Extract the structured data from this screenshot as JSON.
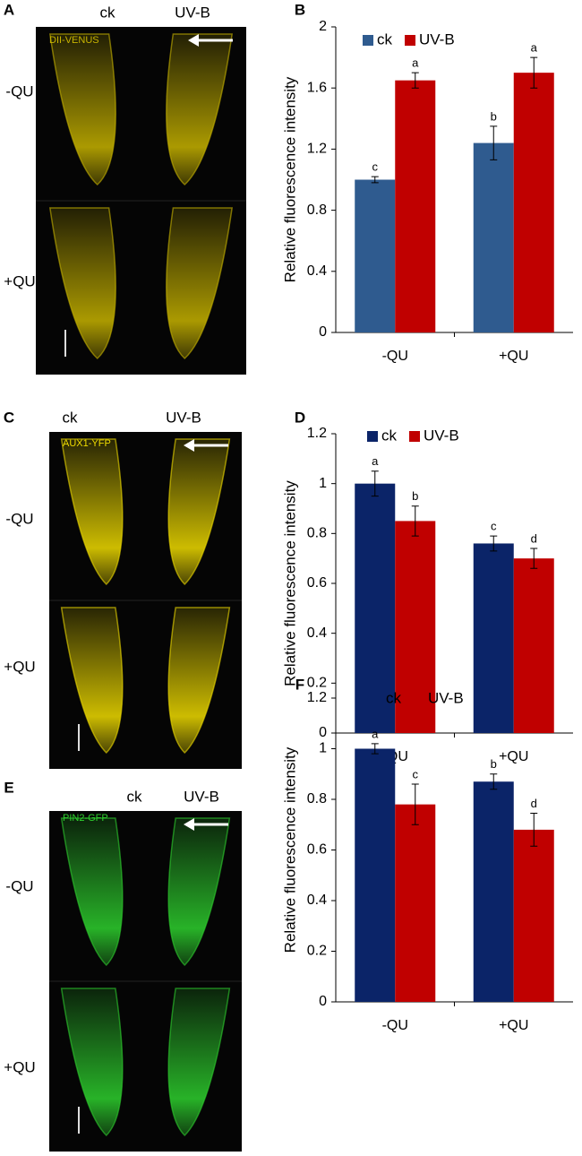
{
  "images": [
    {
      "panel": "A",
      "marker": "DII-VENUS",
      "columns": [
        "ck",
        "UV-B"
      ],
      "rows": [
        "-QU",
        "+QU"
      ],
      "color": "#c8b400"
    },
    {
      "panel": "C",
      "marker": "AUX1-YFP",
      "columns": [
        "ck",
        "UV-B"
      ],
      "rows": [
        "-QU",
        "+QU"
      ],
      "color": "#f0dc00"
    },
    {
      "panel": "E",
      "marker": "PIN2-GFP",
      "columns": [
        "ck",
        "UV-B"
      ],
      "rows": [
        "-QU",
        "+QU"
      ],
      "color": "#2ed12e"
    }
  ],
  "chart_data": [
    {
      "type": "bar",
      "panel": "B",
      "y_label": "Relative fluorescence intensity",
      "categories": [
        "-QU",
        "+QU"
      ],
      "series": [
        {
          "name": "ck",
          "color": "#2f5b8f",
          "values": [
            1.0,
            1.24
          ],
          "errors": [
            0.02,
            0.11
          ],
          "letters": [
            "c",
            "b"
          ]
        },
        {
          "name": "UV-B",
          "color": "#c00000",
          "values": [
            1.65,
            1.7
          ],
          "errors": [
            0.05,
            0.1
          ],
          "letters": [
            "a",
            "a"
          ]
        }
      ],
      "ylim": [
        0,
        2
      ],
      "yticks": [
        0,
        0.4,
        0.8,
        1.2,
        1.6,
        2
      ]
    },
    {
      "type": "bar",
      "panel": "D",
      "y_label": "Relative fluorescence intensity",
      "categories": [
        "-QU",
        "+QU"
      ],
      "series": [
        {
          "name": "ck",
          "color": "#0b2468",
          "values": [
            1.0,
            0.76
          ],
          "errors": [
            0.05,
            0.03
          ],
          "letters": [
            "a",
            "c"
          ]
        },
        {
          "name": "UV-B",
          "color": "#c00000",
          "values": [
            0.85,
            0.7
          ],
          "errors": [
            0.06,
            0.04
          ],
          "letters": [
            "b",
            "d"
          ]
        }
      ],
      "ylim": [
        0,
        1.2
      ],
      "yticks": [
        0,
        0.2,
        0.4,
        0.6,
        0.8,
        1,
        1.2
      ]
    },
    {
      "type": "bar",
      "panel": "F",
      "y_label": "Relative fluorescence intensity",
      "categories": [
        "-QU",
        "+QU"
      ],
      "series": [
        {
          "name": "ck",
          "color": "#0b2468",
          "values": [
            1.0,
            0.87
          ],
          "errors": [
            0.02,
            0.03
          ],
          "letters": [
            "a",
            "b"
          ]
        },
        {
          "name": "UV-B",
          "color": "#c00000",
          "values": [
            0.78,
            0.68
          ],
          "errors": [
            0.08,
            0.065
          ],
          "letters": [
            "c",
            "d"
          ]
        }
      ],
      "ylim": [
        0,
        1.2
      ],
      "yticks": [
        0,
        0.2,
        0.4,
        0.6,
        0.8,
        1,
        1.2
      ]
    }
  ]
}
